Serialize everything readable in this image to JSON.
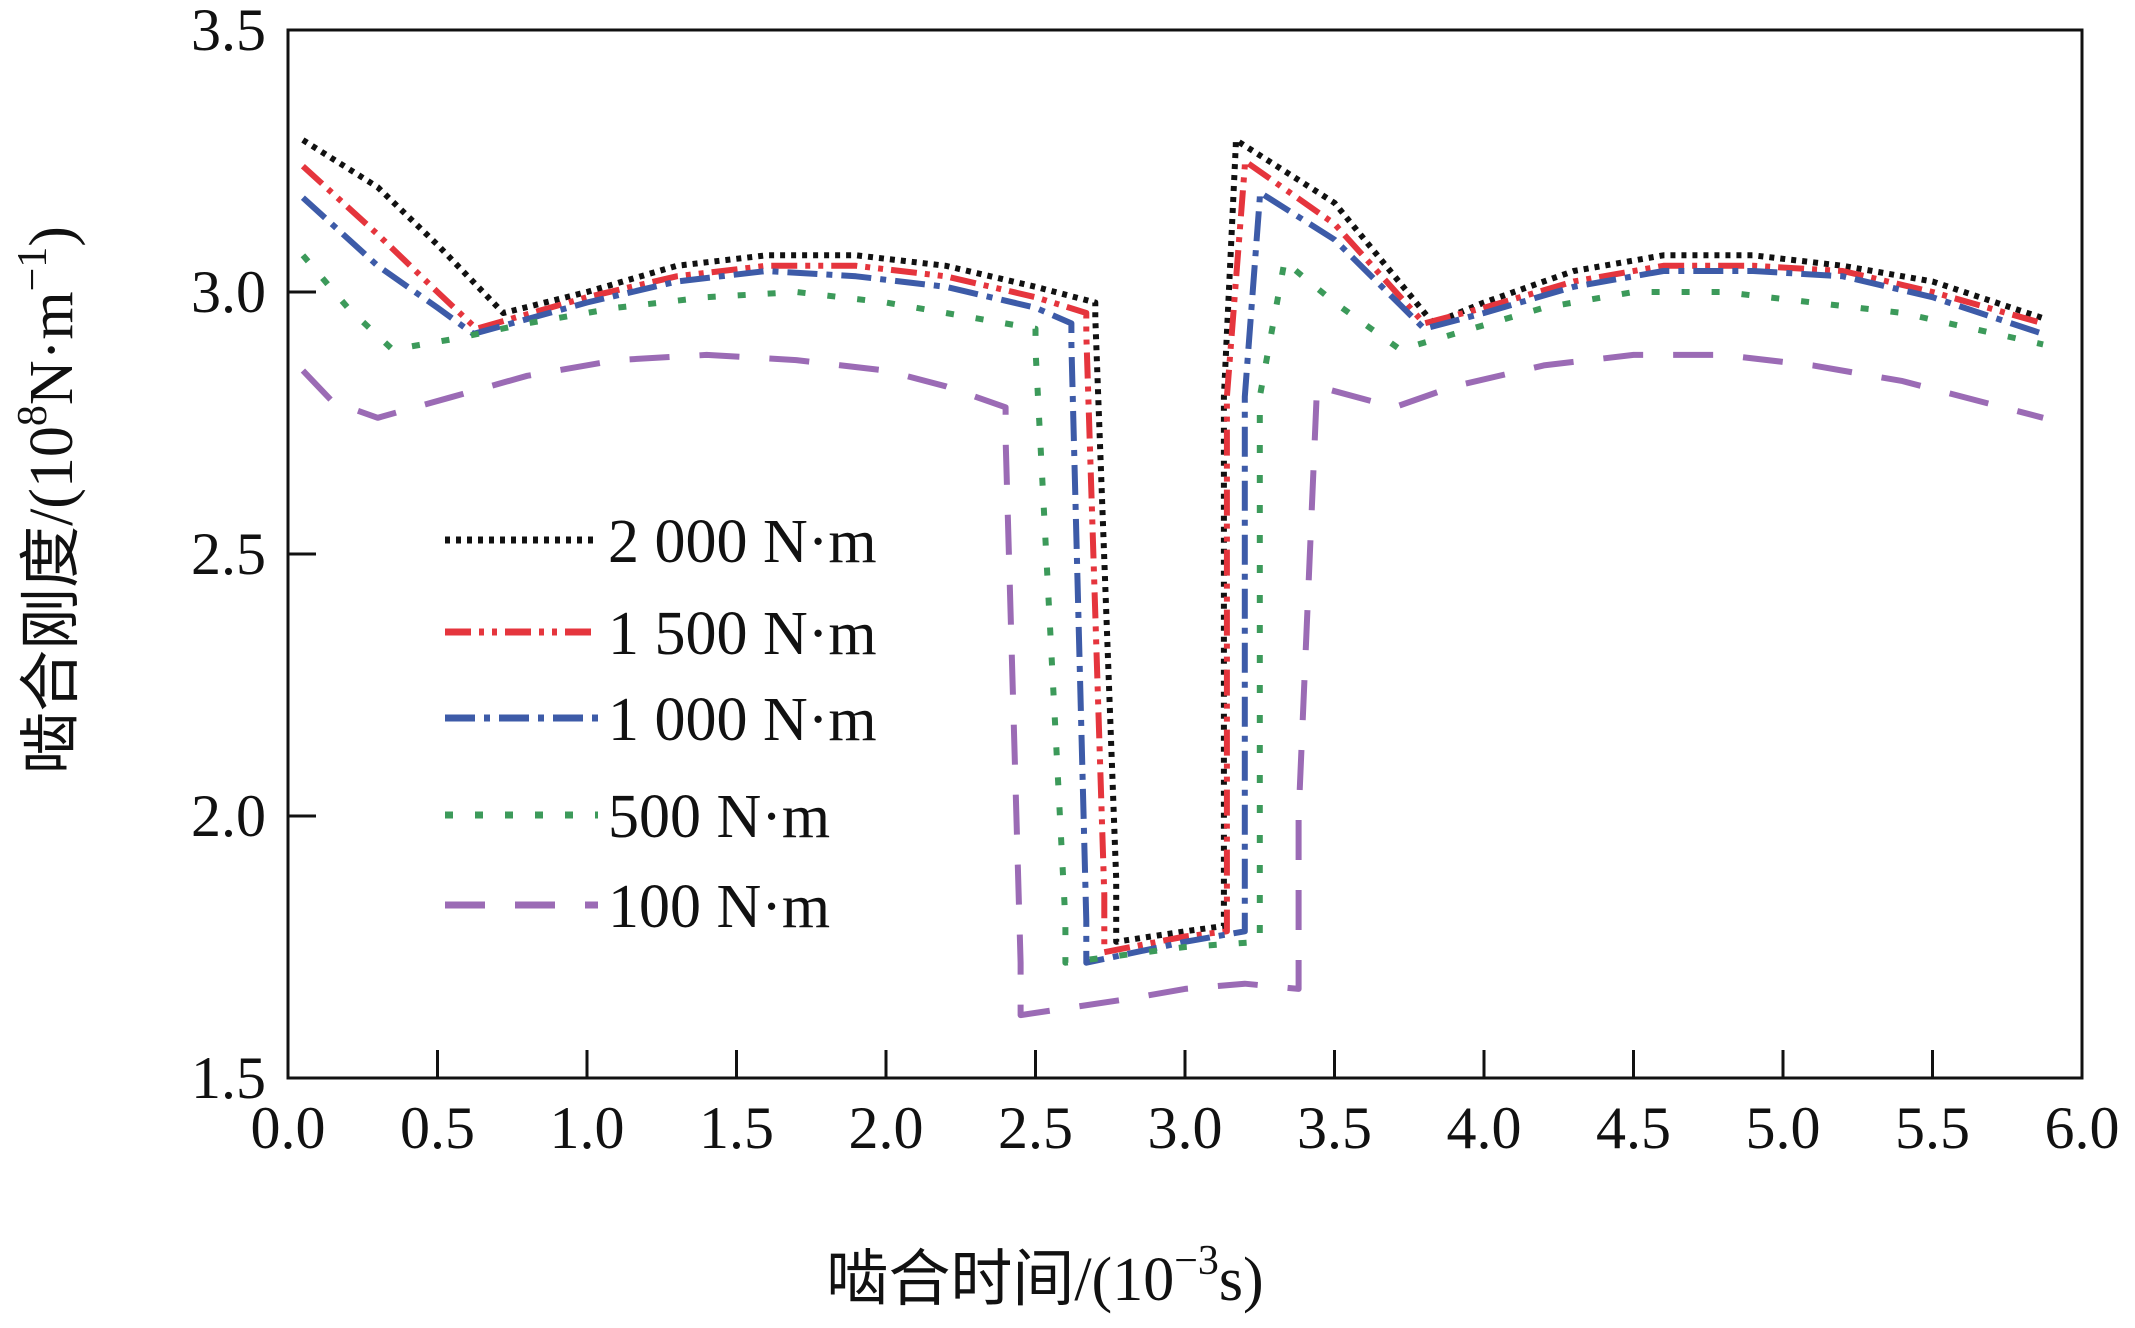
{
  "chart_data": {
    "type": "line",
    "xlabel_main": "啮合时间/(10",
    "xlabel_sup": "−3",
    "xlabel_tail": "s)",
    "ylabel_main": "啮合刚度/(10",
    "ylabel_sup": "8",
    "ylabel_mid": "N·m",
    "ylabel_sup2": "−1",
    "ylabel_tail": ")",
    "xlim": [
      0,
      6
    ],
    "ylim": [
      1.5,
      3.5
    ],
    "xticks": [
      "0.0",
      "0.5",
      "1.0",
      "1.5",
      "2.0",
      "2.5",
      "3.0",
      "3.5",
      "4.0",
      "4.5",
      "5.0",
      "5.5",
      "6.0"
    ],
    "yticks": [
      "1.5",
      "2.0",
      "2.5",
      "3.0",
      "3.5"
    ],
    "grid": false,
    "legend_position": "center-left",
    "series": [
      {
        "name": "2 000 N·m",
        "color": "#111111",
        "dash": "dotted",
        "x": [
          0.05,
          0.3,
          0.5,
          0.72,
          1.0,
          1.3,
          1.6,
          1.9,
          2.2,
          2.5,
          2.7,
          2.7,
          2.77,
          2.77,
          3.0,
          3.13,
          3.13,
          3.17,
          3.17,
          3.5,
          3.83,
          4.0,
          4.3,
          4.6,
          4.9,
          5.2,
          5.5,
          5.87
        ],
        "y": [
          3.29,
          3.2,
          3.09,
          2.96,
          3.0,
          3.05,
          3.07,
          3.07,
          3.05,
          3.01,
          2.98,
          2.95,
          1.88,
          1.76,
          1.78,
          1.79,
          2.8,
          3.28,
          3.29,
          3.17,
          2.94,
          2.98,
          3.04,
          3.07,
          3.07,
          3.05,
          3.02,
          2.95
        ]
      },
      {
        "name": "1 500 N·m",
        "color": "#e5353d",
        "dash": "dashdotdot",
        "x": [
          0.05,
          0.3,
          0.5,
          0.63,
          1.0,
          1.3,
          1.6,
          1.9,
          2.2,
          2.5,
          2.67,
          2.67,
          2.73,
          2.73,
          3.0,
          3.14,
          3.14,
          3.2,
          3.2,
          3.5,
          3.8,
          4.0,
          4.3,
          4.6,
          4.9,
          5.2,
          5.5,
          5.87
        ],
        "y": [
          3.24,
          3.11,
          3.0,
          2.93,
          2.99,
          3.03,
          3.05,
          3.05,
          3.03,
          2.99,
          2.96,
          2.92,
          1.85,
          1.74,
          1.77,
          1.78,
          2.8,
          3.24,
          3.25,
          3.13,
          2.94,
          2.97,
          3.02,
          3.05,
          3.05,
          3.04,
          3.0,
          2.94
        ]
      },
      {
        "name": "1 000 N·m",
        "color": "#3d5ba8",
        "dash": "dashdot",
        "x": [
          0.05,
          0.3,
          0.5,
          0.62,
          1.0,
          1.3,
          1.6,
          1.9,
          2.2,
          2.5,
          2.62,
          2.62,
          2.67,
          2.67,
          3.0,
          3.2,
          3.2,
          3.25,
          3.25,
          3.5,
          3.8,
          4.0,
          4.3,
          4.6,
          4.9,
          5.2,
          5.5,
          5.87
        ],
        "y": [
          3.18,
          3.05,
          2.97,
          2.92,
          2.98,
          3.02,
          3.04,
          3.03,
          3.01,
          2.97,
          2.94,
          2.9,
          1.8,
          1.72,
          1.76,
          1.78,
          2.8,
          3.18,
          3.19,
          3.1,
          2.93,
          2.96,
          3.01,
          3.04,
          3.04,
          3.03,
          2.99,
          2.92
        ]
      },
      {
        "name": "500 N·m",
        "color": "#3c9a5a",
        "dash": "dotted-sparse",
        "x": [
          0.05,
          0.2,
          0.35,
          0.55,
          0.8,
          1.1,
          1.4,
          1.7,
          2.0,
          2.3,
          2.5,
          2.5,
          2.6,
          2.6,
          3.0,
          3.25,
          3.25,
          3.33,
          3.33,
          3.5,
          3.72,
          3.9,
          4.2,
          4.5,
          4.8,
          5.1,
          5.4,
          5.87
        ],
        "y": [
          3.07,
          2.97,
          2.89,
          2.91,
          2.94,
          2.97,
          2.99,
          3.0,
          2.98,
          2.95,
          2.93,
          2.89,
          1.8,
          1.72,
          1.75,
          1.76,
          2.8,
          3.05,
          3.06,
          2.98,
          2.89,
          2.92,
          2.97,
          3.0,
          3.0,
          2.98,
          2.96,
          2.9
        ]
      },
      {
        "name": "100 N·m",
        "color": "#9b6bb5",
        "dash": "longdash",
        "x": [
          0.05,
          0.15,
          0.3,
          0.55,
          0.8,
          1.1,
          1.4,
          1.7,
          2.0,
          2.2,
          2.4,
          2.4,
          2.45,
          2.45,
          2.8,
          3.0,
          3.2,
          3.38,
          3.38,
          3.44,
          3.44,
          3.7,
          3.9,
          4.2,
          4.5,
          4.8,
          5.1,
          5.4,
          5.87
        ],
        "y": [
          2.85,
          2.79,
          2.76,
          2.8,
          2.84,
          2.87,
          2.88,
          2.87,
          2.85,
          2.82,
          2.78,
          2.72,
          1.72,
          1.62,
          1.65,
          1.67,
          1.68,
          1.67,
          2.0,
          2.8,
          2.82,
          2.78,
          2.82,
          2.86,
          2.88,
          2.88,
          2.86,
          2.83,
          2.76
        ]
      }
    ]
  }
}
